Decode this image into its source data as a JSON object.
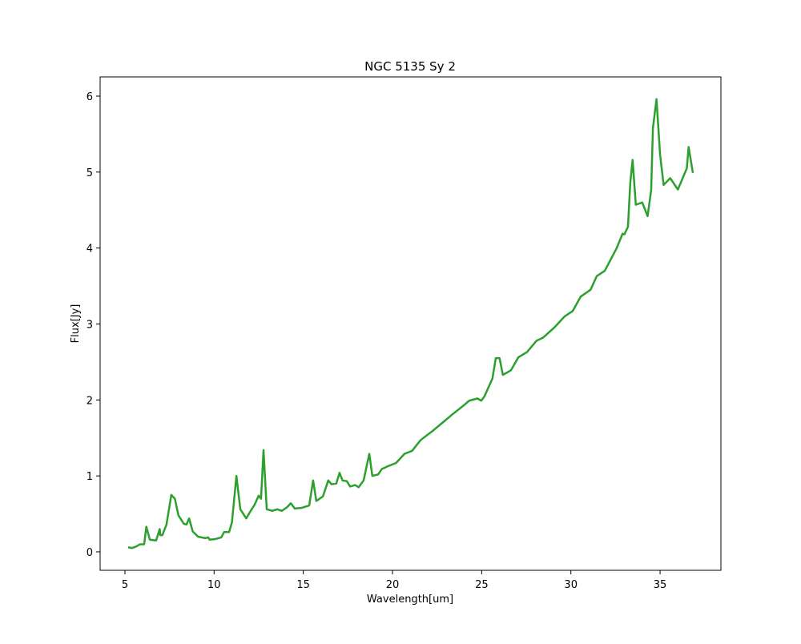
{
  "chart_data": {
    "type": "line",
    "title": "NGC 5135 Sy 2",
    "xlabel": "Wavelength[um]",
    "ylabel": "Flux[Jy]",
    "xlim": [
      3.61,
      38.41
    ],
    "ylim": [
      -0.243,
      6.253
    ],
    "xticks": [
      5,
      10,
      15,
      20,
      25,
      30,
      35
    ],
    "yticks": [
      0,
      1,
      2,
      3,
      4,
      5,
      6
    ],
    "series": [
      {
        "name": "NGC 5135 Sy 2",
        "color": "#2ca02c",
        "x": [
          5.18,
          5.4,
          5.63,
          5.85,
          6.08,
          6.2,
          6.4,
          6.75,
          6.95,
          6.98,
          7.1,
          7.33,
          7.6,
          7.8,
          8.0,
          8.3,
          8.45,
          8.6,
          8.8,
          9.1,
          9.5,
          9.67,
          9.75,
          10.1,
          10.4,
          10.56,
          10.84,
          11.0,
          11.25,
          11.47,
          11.8,
          12.05,
          12.27,
          12.5,
          12.63,
          12.77,
          12.95,
          13.26,
          13.53,
          13.8,
          14.1,
          14.3,
          14.52,
          14.92,
          15.33,
          15.55,
          15.73,
          16.1,
          16.4,
          16.58,
          16.85,
          17.03,
          17.2,
          17.44,
          17.62,
          17.9,
          18.1,
          18.38,
          18.7,
          18.87,
          19.2,
          19.4,
          19.77,
          20.2,
          20.67,
          21.1,
          21.57,
          22.24,
          22.7,
          23.36,
          23.95,
          24.3,
          24.76,
          24.98,
          25.16,
          25.6,
          25.79,
          26.0,
          26.19,
          26.64,
          27.05,
          27.54,
          28.08,
          28.44,
          29.1,
          29.65,
          30.1,
          30.55,
          31.1,
          31.45,
          31.9,
          32.57,
          32.9,
          33.0,
          33.2,
          33.33,
          33.46,
          33.64,
          34.0,
          34.3,
          34.5,
          34.6,
          34.8,
          35.0,
          35.2,
          35.57,
          36.0,
          36.5,
          36.6,
          36.84
        ],
        "values": [
          0.06,
          0.05,
          0.07,
          0.1,
          0.1,
          0.33,
          0.16,
          0.15,
          0.3,
          0.22,
          0.22,
          0.36,
          0.75,
          0.7,
          0.48,
          0.37,
          0.36,
          0.44,
          0.27,
          0.2,
          0.18,
          0.19,
          0.16,
          0.17,
          0.19,
          0.26,
          0.26,
          0.39,
          1.0,
          0.56,
          0.44,
          0.54,
          0.62,
          0.74,
          0.7,
          1.34,
          0.56,
          0.54,
          0.56,
          0.54,
          0.59,
          0.64,
          0.57,
          0.58,
          0.61,
          0.94,
          0.67,
          0.73,
          0.94,
          0.89,
          0.9,
          1.04,
          0.94,
          0.93,
          0.86,
          0.88,
          0.85,
          0.94,
          1.29,
          1.0,
          1.02,
          1.09,
          1.13,
          1.17,
          1.29,
          1.33,
          1.47,
          1.59,
          1.68,
          1.81,
          1.92,
          1.99,
          2.02,
          1.99,
          2.05,
          2.28,
          2.55,
          2.55,
          2.33,
          2.39,
          2.56,
          2.63,
          2.78,
          2.82,
          2.96,
          3.1,
          3.17,
          3.36,
          3.45,
          3.63,
          3.7,
          4.0,
          4.19,
          4.18,
          4.28,
          4.86,
          5.16,
          4.57,
          4.6,
          4.42,
          4.76,
          5.58,
          5.96,
          5.23,
          4.83,
          4.92,
          4.77,
          5.05,
          5.33,
          4.99
        ]
      }
    ]
  }
}
